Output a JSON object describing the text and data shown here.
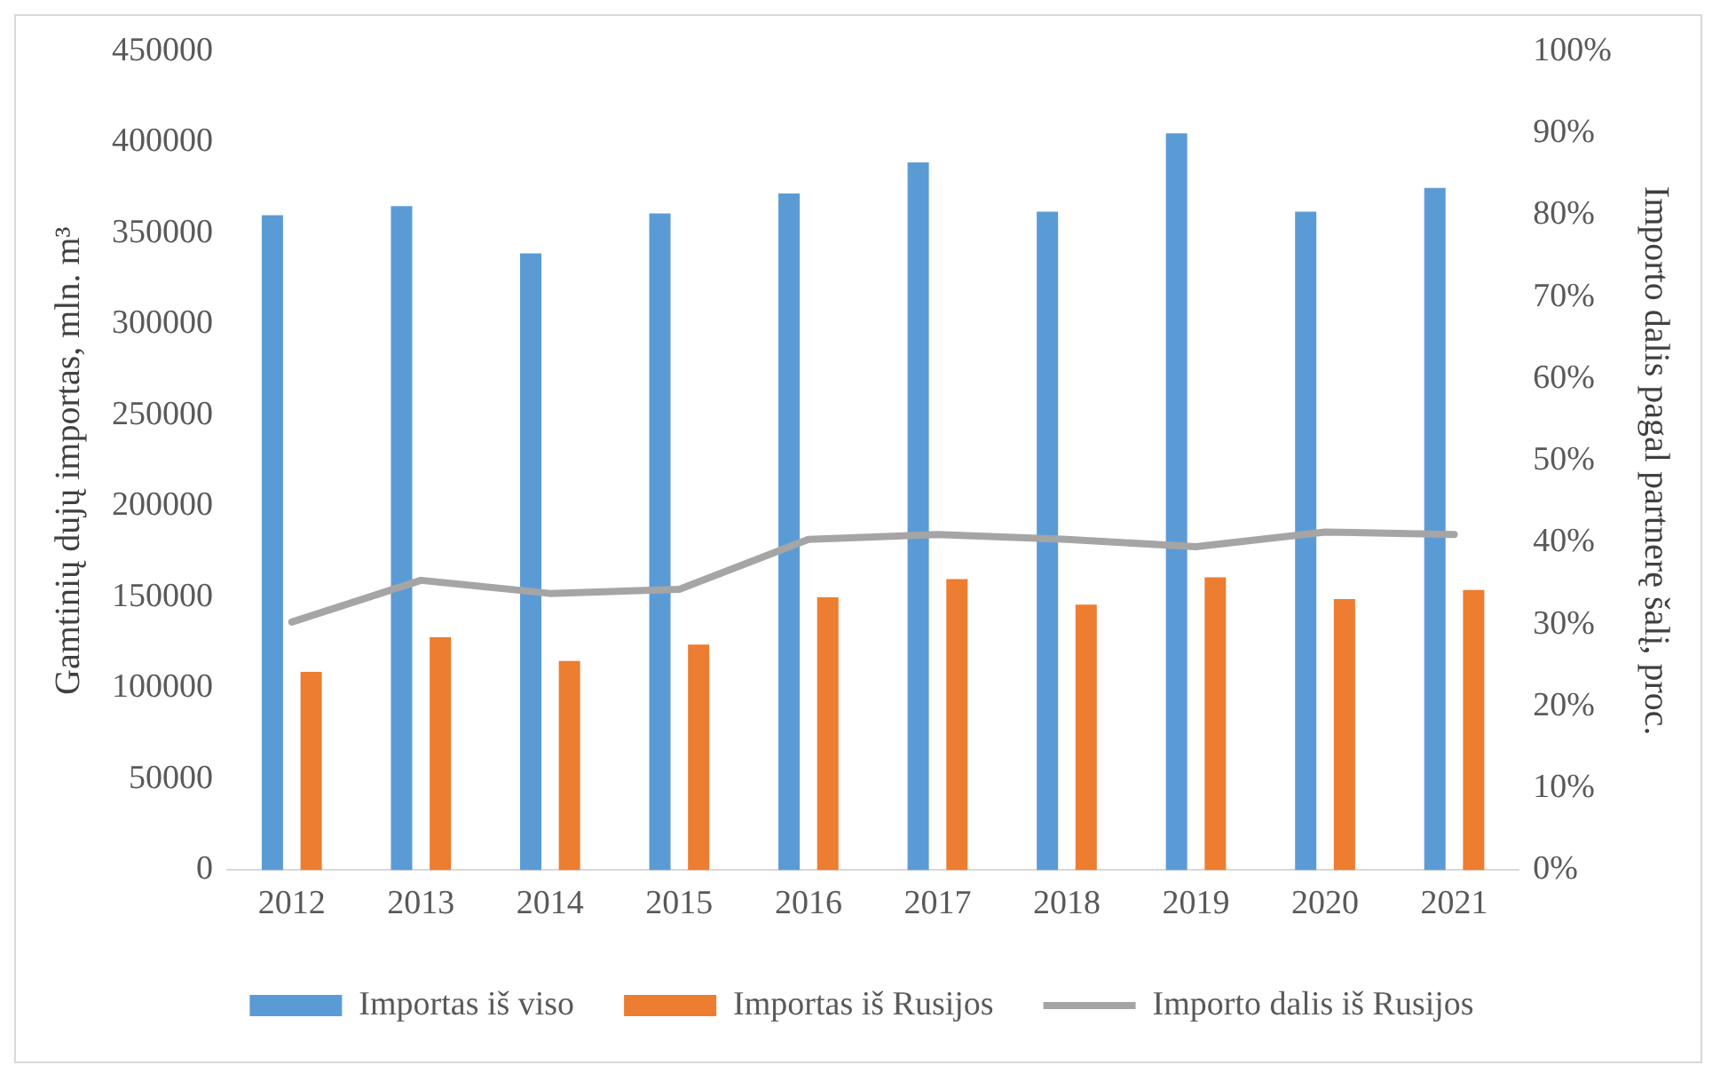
{
  "chart_data": {
    "type": "bar",
    "categories": [
      "2012",
      "2013",
      "2014",
      "2015",
      "2016",
      "2017",
      "2018",
      "2019",
      "2020",
      "2021"
    ],
    "ylabel": "Gamtinių dujų importas, mln. m³",
    "y2label": "Importo dalis pagal partnerę šalį, proc.",
    "series": [
      {
        "name": "Importas iš viso",
        "color": "#5b9bd5",
        "values": [
          360000,
          365000,
          339000,
          361000,
          372000,
          389000,
          362000,
          405000,
          362000,
          375000
        ]
      },
      {
        "name": "Importas iš Rusijos",
        "color": "#ed7d31",
        "values": [
          109000,
          128000,
          115000,
          124000,
          150000,
          160000,
          146000,
          161000,
          149000,
          154000
        ]
      },
      {
        "name": "Importo dalis iš Rusijos",
        "type": "line",
        "axis": "y2",
        "color": "#a5a5a5",
        "values": [
          30.3,
          35.4,
          33.8,
          34.3,
          40.4,
          41.0,
          40.4,
          39.5,
          41.3,
          41.0
        ]
      }
    ],
    "ylim": [
      0,
      450000
    ],
    "yticks": [
      0,
      50000,
      100000,
      150000,
      200000,
      250000,
      300000,
      350000,
      400000,
      450000
    ],
    "y2lim": [
      0,
      100
    ],
    "y2ticks": [
      {
        "value": 0,
        "label": "0%"
      },
      {
        "value": 10,
        "label": "10%"
      },
      {
        "value": 20,
        "label": "20%"
      },
      {
        "value": 30,
        "label": "30%"
      },
      {
        "value": 40,
        "label": "40%"
      },
      {
        "value": 50,
        "label": "50%"
      },
      {
        "value": 60,
        "label": "60%"
      },
      {
        "value": 70,
        "label": "70%"
      },
      {
        "value": 80,
        "label": "80%"
      },
      {
        "value": 90,
        "label": "90%"
      },
      {
        "value": 100,
        "label": "100%"
      }
    ],
    "grid": false,
    "legend": "bottom",
    "line_style": "solid"
  }
}
